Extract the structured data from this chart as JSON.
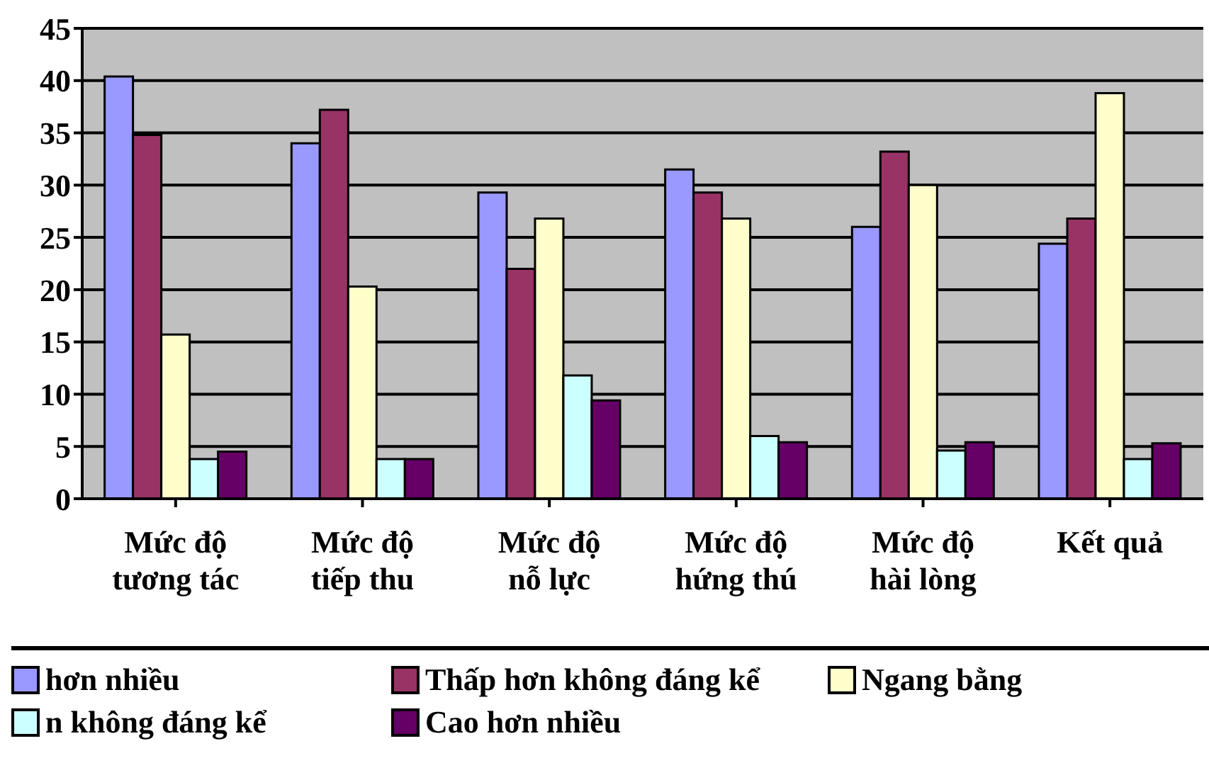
{
  "chart_data": {
    "type": "bar",
    "categories": [
      "Mức độ\ntương tác",
      "Mức độ\ntiếp thu",
      "Mức độ\nnỗ lực",
      "Mức độ\nhứng thú",
      "Mức độ\nhài lòng",
      "Kết quả"
    ],
    "series": [
      {
        "name": "hơn nhiều",
        "color": "#9999ff",
        "values": [
          40.4,
          34.0,
          29.3,
          31.5,
          26.0,
          24.4
        ]
      },
      {
        "name": "Thấp hơn không đáng kể",
        "color": "#993366",
        "values": [
          34.8,
          37.2,
          22.0,
          29.3,
          33.2,
          26.8
        ]
      },
      {
        "name": "Ngang bằng",
        "color": "#ffffcc",
        "values": [
          15.7,
          20.3,
          26.8,
          26.8,
          30.0,
          38.8
        ]
      },
      {
        "name": "n không đáng kể",
        "color": "#ccffff",
        "values": [
          3.8,
          3.8,
          11.8,
          6.0,
          4.6,
          3.8
        ]
      },
      {
        "name": "Cao hơn nhiều",
        "color": "#660066",
        "values": [
          4.5,
          3.8,
          9.4,
          5.4,
          5.4,
          5.3
        ]
      }
    ],
    "ylim": [
      0,
      45
    ],
    "yticks": [
      0,
      5,
      10,
      15,
      20,
      25,
      30,
      35,
      40,
      45
    ],
    "grid": "y",
    "legend": "bottom"
  }
}
